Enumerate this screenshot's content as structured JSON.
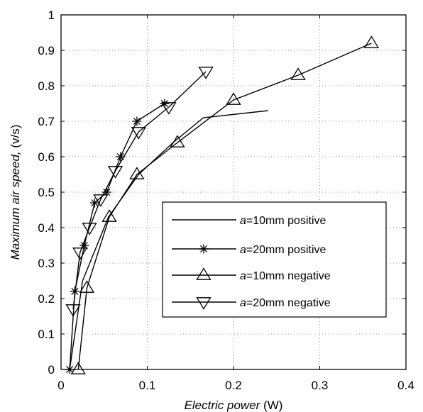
{
  "chart_data": {
    "type": "line",
    "xlabel": "Electric power",
    "xlabel_unit": " (W)",
    "ylabel": "Maximum air speed,",
    "ylabel_unit": " (v/s)",
    "xlim": [
      0,
      0.4
    ],
    "ylim": [
      0,
      1
    ],
    "xticks": [
      0,
      0.1,
      0.2,
      0.3,
      0.4
    ],
    "xtick_labels": [
      "0",
      "0.1",
      "0.2",
      "0.3",
      "0.4"
    ],
    "yticks": [
      0,
      0.1,
      0.2,
      0.3,
      0.4,
      0.5,
      0.6,
      0.7,
      0.8,
      0.9,
      1
    ],
    "ytick_labels": [
      "0",
      "0.1",
      "0.2",
      "0.3",
      "0.4",
      "0.5",
      "0.6",
      "0.7",
      "0.8",
      "0.9",
      "1"
    ],
    "grid": true,
    "legend_position": "bottom-right",
    "series": [
      {
        "name_italic": "a",
        "name": "=10mm positive",
        "marker": "none",
        "x": [
          0.01,
          0.025,
          0.055,
          0.09,
          0.13,
          0.165,
          0.24
        ],
        "y": [
          0,
          0.25,
          0.43,
          0.55,
          0.64,
          0.71,
          0.73
        ]
      },
      {
        "name_italic": "a",
        "name": "=20mm positive",
        "marker": "star",
        "x": [
          0.01,
          0.016,
          0.027,
          0.039,
          0.053,
          0.069,
          0.088,
          0.12
        ],
        "y": [
          0,
          0.22,
          0.35,
          0.47,
          0.5,
          0.6,
          0.7,
          0.75
        ]
      },
      {
        "name_italic": "a",
        "name": "=10mm negative",
        "marker": "triangle-up",
        "x": [
          0.02,
          0.03,
          0.056,
          0.088,
          0.135,
          0.2,
          0.275,
          0.36
        ],
        "y": [
          0,
          0.23,
          0.43,
          0.55,
          0.64,
          0.76,
          0.83,
          0.92
        ]
      },
      {
        "name_italic": "a",
        "name": "=20mm negative",
        "marker": "triangle-down",
        "x": [
          0.014,
          0.022,
          0.033,
          0.046,
          0.063,
          0.09,
          0.125,
          0.168
        ],
        "y": [
          0.17,
          0.33,
          0.4,
          0.48,
          0.56,
          0.67,
          0.74,
          0.84
        ]
      }
    ]
  }
}
